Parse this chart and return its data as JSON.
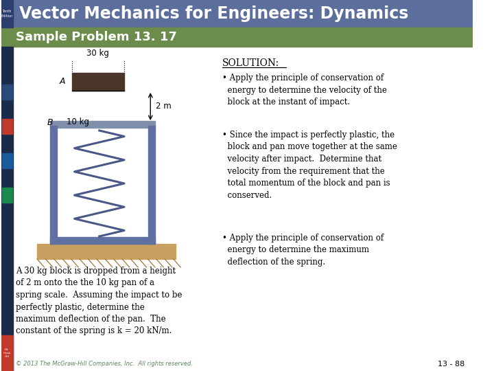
{
  "title": "Vector Mechanics for Engineers: Dynamics",
  "subtitle": "Sample Problem 13. 17",
  "header_bg": "#5a6e9e",
  "subheader_bg": "#6b8c4a",
  "solution_title": "SOLUTION:",
  "bullet1": "Apply the principle of conservation of\n  energy to determine the velocity of the\n  block at the instant of impact.",
  "bullet2": "Since the impact is perfectly plastic, the\n  block and pan move together at the same\n  velocity after impact.  Determine that\n  velocity from the requirement that the\n  total momentum of the block and pan is\n  conserved.",
  "bullet3": "Apply the principle of conservation of\n  energy to determine the maximum\n  deflection of the spring.",
  "problem_text": "A 30 kg block is dropped from a height\nof 2 m onto the the 10 kg pan of a\nspring scale.  Assuming the impact to be\nperfectly plastic, determine the\nmaximum deflection of the pan.  The\nconstant of the spring is k = 20 kN/m.",
  "copyright": "© 2013 The McGraw-Hill Companies, Inc.  All rights reserved.",
  "page_num": "13 - 88",
  "main_bg": "#ffffff",
  "header_bg_color": "#5b6e9c",
  "subheader_bg_color": "#6b8c4a",
  "sidebar_bg_color": "#1a2a4a",
  "title_text_color": "#ffffff",
  "subtitle_text_color": "#ffffff",
  "text_color": "#000000"
}
